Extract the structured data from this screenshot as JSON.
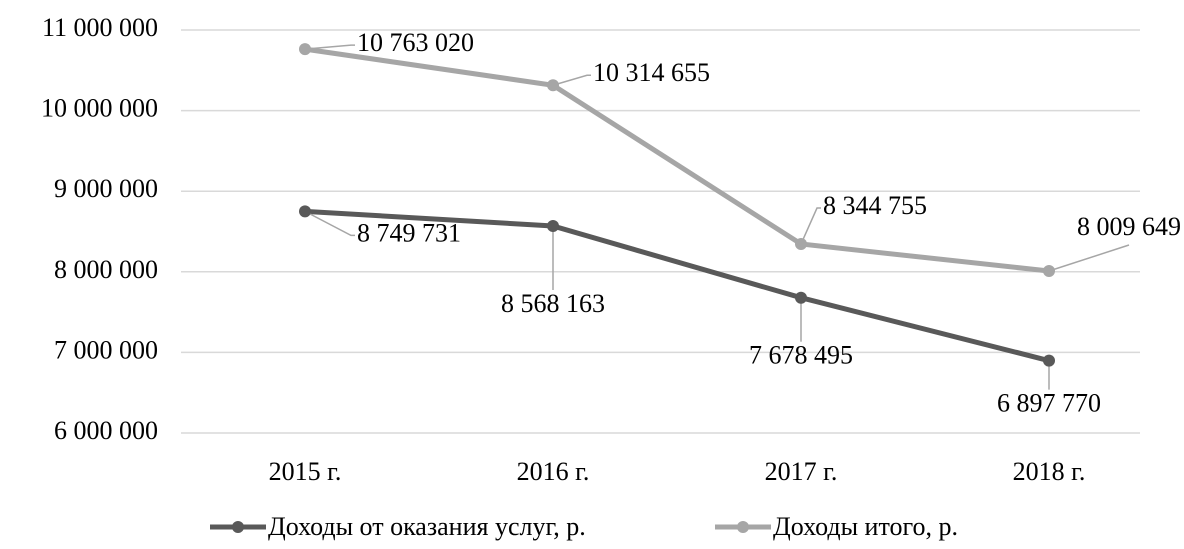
{
  "chart_data": {
    "type": "line",
    "categories": [
      "2015 г.",
      "2016 г.",
      "2017 г.",
      "2018 г."
    ],
    "series": [
      {
        "name": "Доходы от оказания услуг, р.",
        "color": "#595959",
        "values": [
          8749731,
          8568163,
          7678495,
          6897770
        ],
        "value_labels": [
          "8 749 731",
          "8 568 163",
          "7 678 495",
          "6 897 770"
        ]
      },
      {
        "name": "Доходы итого, р.",
        "color": "#a6a6a6",
        "values": [
          10763020,
          10314655,
          8344755,
          8009649
        ],
        "value_labels": [
          "10 763 020",
          "10 314 655",
          "8 344 755",
          "8 009 649"
        ]
      }
    ],
    "ylim": [
      6000000,
      11000000
    ],
    "yticks": [
      {
        "value": 6000000,
        "label": "6 000 000"
      },
      {
        "value": 7000000,
        "label": "7 000 000"
      },
      {
        "value": 8000000,
        "label": "8 000 000"
      },
      {
        "value": 9000000,
        "label": "9 000 000"
      },
      {
        "value": 10000000,
        "label": "10 000 000"
      },
      {
        "value": 11000000,
        "label": "11 000 000"
      }
    ],
    "grid": true,
    "legend": "bottom"
  }
}
